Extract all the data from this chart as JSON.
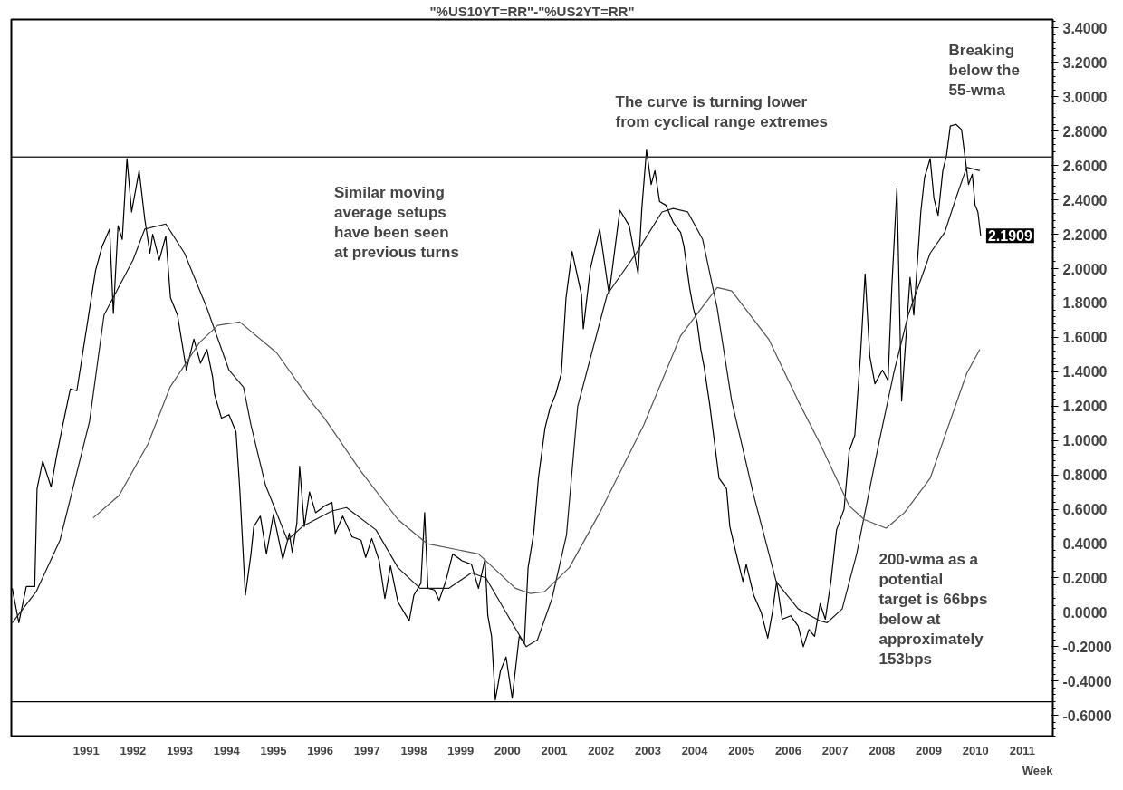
{
  "chart_data": {
    "type": "line",
    "title": "\"%US10YT=RR\"-\"%US2YT=RR\"",
    "xlabel": "Week",
    "xlim": [
      1989.9,
      2012.15
    ],
    "xticks": [
      {
        "value": 1991.5,
        "label": "1991"
      },
      {
        "value": 1992.5,
        "label": "1992"
      },
      {
        "value": 1993.5,
        "label": "1993"
      },
      {
        "value": 1994.5,
        "label": "1994"
      },
      {
        "value": 1995.5,
        "label": "1995"
      },
      {
        "value": 1996.5,
        "label": "1996"
      },
      {
        "value": 1997.5,
        "label": "1997"
      },
      {
        "value": 1998.5,
        "label": "1998"
      },
      {
        "value": 1999.5,
        "label": "1999"
      },
      {
        "value": 2000.5,
        "label": "2000"
      },
      {
        "value": 2001.5,
        "label": "2001"
      },
      {
        "value": 2002.5,
        "label": "2002"
      },
      {
        "value": 2003.5,
        "label": "2003"
      },
      {
        "value": 2004.5,
        "label": "2004"
      },
      {
        "value": 2005.5,
        "label": "2005"
      },
      {
        "value": 2006.5,
        "label": "2006"
      },
      {
        "value": 2007.5,
        "label": "2007"
      },
      {
        "value": 2008.5,
        "label": "2008"
      },
      {
        "value": 2009.5,
        "label": "2009"
      },
      {
        "value": 2010.5,
        "label": "2010"
      },
      {
        "value": 2011.5,
        "label": "2011"
      }
    ],
    "ylim": [
      -0.72,
      3.45
    ],
    "yticks": [
      {
        "value": -0.6,
        "label": "-0.6000"
      },
      {
        "value": -0.4,
        "label": "-0.4000"
      },
      {
        "value": -0.2,
        "label": "-0.2000"
      },
      {
        "value": 0,
        "label": "0.0000"
      },
      {
        "value": 0.2,
        "label": "0.2000"
      },
      {
        "value": 0.4,
        "label": "0.4000"
      },
      {
        "value": 0.6,
        "label": "0.6000"
      },
      {
        "value": 0.8,
        "label": "0.8000"
      },
      {
        "value": 1.0,
        "label": "1.0000"
      },
      {
        "value": 1.2,
        "label": "1.2000"
      },
      {
        "value": 1.4,
        "label": "1.4000"
      },
      {
        "value": 1.6,
        "label": "1.6000"
      },
      {
        "value": 1.8,
        "label": "1.8000"
      },
      {
        "value": 2.0,
        "label": "2.0000"
      },
      {
        "value": 2.2,
        "label": "2.2000"
      },
      {
        "value": 2.4,
        "label": "2.4000"
      },
      {
        "value": 2.6,
        "label": "2.6000"
      },
      {
        "value": 2.8,
        "label": "2.8000"
      },
      {
        "value": 3.0,
        "label": "3.0000"
      },
      {
        "value": 3.2,
        "label": "3.2000"
      },
      {
        "value": 3.4,
        "label": "3.4000"
      }
    ],
    "grid": false,
    "marker": "none",
    "line_style": "solid",
    "series": [
      {
        "color": "#000000",
        "x": [
          1989.92,
          1990.06,
          1990.22,
          1990.4,
          1990.45,
          1990.57,
          1990.75,
          1990.86,
          1991.0,
          1991.16,
          1991.3,
          1991.7,
          1991.84,
          1992.0,
          1992.08,
          1992.18,
          1992.27,
          1992.37,
          1992.47,
          1992.63,
          1992.75,
          1992.86,
          1992.92,
          1993.06,
          1993.2,
          1993.3,
          1993.45,
          1993.64,
          1993.8,
          1993.94,
          1994.08,
          1994.2,
          1994.24,
          1994.39,
          1994.55,
          1994.7,
          1994.78,
          1994.9,
          1995.02,
          1995.08,
          1995.22,
          1995.35,
          1995.5,
          1995.7,
          1995.84,
          1995.9,
          1996.0,
          1996.06,
          1996.16,
          1996.27,
          1996.4,
          1996.6,
          1996.75,
          1996.82,
          1996.98,
          1997.18,
          1997.37,
          1997.47,
          1997.6,
          1997.76,
          1997.88,
          1998.0,
          1998.16,
          1998.4,
          1998.5,
          1998.65,
          1998.73,
          1998.8,
          1998.94,
          1999.04,
          1999.18,
          1999.33,
          1999.53,
          1999.73,
          1999.88,
          2000.02,
          2000.08,
          2000.16,
          2000.24,
          2000.35,
          2000.47,
          2000.6,
          2000.75,
          2000.86,
          2000.94,
          2001.06,
          2001.16,
          2001.3,
          2001.41,
          2001.53,
          2001.65,
          2001.75,
          2001.88,
          2002.08,
          2002.12,
          2002.27,
          2002.47,
          2002.67,
          2002.9,
          2003.1,
          2003.29,
          2003.37,
          2003.47,
          2003.57,
          2003.65,
          2003.75,
          2003.88,
          2004.04,
          2004.2,
          2004.27,
          2004.39,
          2004.47,
          2004.55,
          2004.63,
          2004.7,
          2004.82,
          2005.02,
          2005.18,
          2005.25,
          2005.37,
          2005.53,
          2005.6,
          2005.76,
          2005.92,
          2006.06,
          2006.16,
          2006.25,
          2006.37,
          2006.55,
          2006.71,
          2006.82,
          2006.94,
          2007.06,
          2007.18,
          2007.29,
          2007.41,
          2007.53,
          2007.69,
          2007.8,
          2007.92,
          2008.04,
          2008.14,
          2008.24,
          2008.35,
          2008.51,
          2008.63,
          2008.71,
          2008.82,
          2008.92,
          2009.1,
          2009.18,
          2009.33,
          2009.41,
          2009.53,
          2009.61,
          2009.7,
          2009.8,
          2009.88,
          2009.96,
          2010.08,
          2010.2,
          2010.27,
          2010.35,
          2010.43,
          2010.49,
          2010.55,
          2010.61
        ],
        "values": [
          0.14,
          -0.06,
          0.15,
          0.15,
          0.72,
          0.88,
          0.73,
          0.9,
          1.09,
          1.3,
          1.29,
          1.99,
          2.13,
          2.23,
          1.74,
          2.25,
          2.17,
          2.64,
          2.33,
          2.57,
          2.29,
          2.09,
          2.2,
          2.05,
          2.19,
          1.83,
          1.73,
          1.41,
          1.59,
          1.45,
          1.53,
          1.37,
          1.27,
          1.13,
          1.15,
          1.05,
          0.72,
          0.1,
          0.34,
          0.5,
          0.56,
          0.34,
          0.57,
          0.31,
          0.46,
          0.35,
          0.52,
          0.85,
          0.5,
          0.7,
          0.58,
          0.62,
          0.64,
          0.46,
          0.56,
          0.44,
          0.42,
          0.32,
          0.43,
          0.3,
          0.08,
          0.27,
          0.06,
          -0.05,
          0.1,
          0.17,
          0.58,
          0.14,
          0.13,
          0.07,
          0.18,
          0.34,
          0.3,
          0.28,
          0.14,
          0.31,
          -0.02,
          -0.14,
          -0.51,
          -0.34,
          -0.26,
          -0.5,
          -0.14,
          -0.18,
          0.26,
          0.46,
          0.78,
          1.07,
          1.19,
          1.27,
          1.39,
          1.83,
          2.1,
          1.85,
          1.65,
          2.0,
          2.23,
          1.85,
          2.34,
          2.25,
          1.97,
          2.35,
          2.69,
          2.49,
          2.57,
          2.39,
          2.37,
          2.27,
          2.21,
          2.13,
          1.89,
          1.77,
          1.69,
          1.53,
          1.43,
          1.21,
          0.78,
          0.72,
          0.5,
          0.36,
          0.18,
          0.28,
          0.1,
          0.0,
          -0.15,
          0.0,
          0.18,
          -0.04,
          -0.02,
          -0.08,
          -0.2,
          -0.1,
          -0.14,
          0.05,
          -0.04,
          0.18,
          0.48,
          0.6,
          0.94,
          1.03,
          1.49,
          1.97,
          1.49,
          1.33,
          1.41,
          1.35,
          1.89,
          2.47,
          1.23,
          1.95,
          1.73,
          2.33,
          2.53,
          2.64,
          2.41,
          2.31,
          2.57,
          2.66,
          2.83,
          2.84,
          2.81,
          2.66,
          2.49,
          2.55,
          2.37,
          2.33,
          2.19
        ]
      },
      {
        "color": "#1a1a1a",
        "x": [
          1989.92,
          1990.43,
          1990.94,
          1991.57,
          1991.88,
          1992.5,
          1992.75,
          1993.2,
          1993.6,
          1994.08,
          1994.55,
          1994.86,
          1995.02,
          1995.33,
          1995.8,
          1996.12,
          1996.75,
          1997.06,
          1997.69,
          1998.16,
          1998.63,
          1999.25,
          1999.73,
          2000.04,
          2000.51,
          2000.9,
          2001.14,
          2001.45,
          2001.76,
          2002.0,
          2002.63,
          2003.25,
          2003.8,
          2004.04,
          2004.35,
          2004.67,
          2004.98,
          2005.29,
          2005.76,
          2006.24,
          2006.71,
          2007.18,
          2007.33,
          2007.65,
          2007.96,
          2008.43,
          2008.75,
          2009.06,
          2009.53,
          2009.84,
          2010.08,
          2010.31,
          2010.59
        ],
        "values": [
          -0.06,
          0.12,
          0.42,
          1.11,
          1.73,
          2.05,
          2.23,
          2.26,
          2.09,
          1.77,
          1.41,
          1.31,
          1.09,
          0.74,
          0.42,
          0.5,
          0.59,
          0.61,
          0.48,
          0.26,
          0.14,
          0.14,
          0.23,
          0.2,
          -0.02,
          -0.2,
          -0.16,
          0.08,
          0.45,
          1.2,
          1.85,
          2.09,
          2.33,
          2.35,
          2.33,
          2.17,
          1.77,
          1.23,
          0.68,
          0.18,
          0.02,
          -0.05,
          -0.06,
          0.02,
          0.34,
          0.98,
          1.39,
          1.73,
          2.09,
          2.21,
          2.41,
          2.59,
          2.57
        ]
      },
      {
        "color": "#555555",
        "x": [
          1991.65,
          1992.2,
          1992.82,
          1993.29,
          1993.92,
          1994.31,
          1994.78,
          1995.57,
          1996.35,
          1996.59,
          1997.37,
          1998.16,
          1998.78,
          1999.88,
          2000.67,
          2000.98,
          2001.29,
          2001.82,
          2002.47,
          2003.41,
          2004.2,
          2004.98,
          2005.29,
          2006.08,
          2006.71,
          2007.18,
          2007.8,
          2008.12,
          2008.59,
          2008.98,
          2009.53,
          2010.31,
          2010.59
        ],
        "values": [
          0.55,
          0.68,
          0.98,
          1.31,
          1.57,
          1.67,
          1.69,
          1.51,
          1.21,
          1.13,
          0.82,
          0.54,
          0.4,
          0.34,
          0.14,
          0.11,
          0.12,
          0.26,
          0.58,
          1.09,
          1.61,
          1.89,
          1.87,
          1.59,
          1.23,
          0.98,
          0.62,
          0.54,
          0.49,
          0.58,
          0.78,
          1.39,
          1.53
        ]
      }
    ],
    "ref_lines": [
      {
        "axis": "y",
        "value": 2.65,
        "color": "#333333"
      },
      {
        "axis": "y",
        "value": -0.52,
        "color": "#000000"
      }
    ],
    "annotations": [
      "Similar moving\naverage setups\nhave been seen\nat previous turns",
      "The curve is turning lower\nfrom cyclical range extremes",
      "Breaking\nbelow the\n55-wma",
      "200-wma as a\npotential\ntarget is 66bps\nbelow at\napproximately\n153bps",
      {
        "text": "2.1909",
        "x": 2010.61,
        "y": 2.1909
      }
    ]
  }
}
